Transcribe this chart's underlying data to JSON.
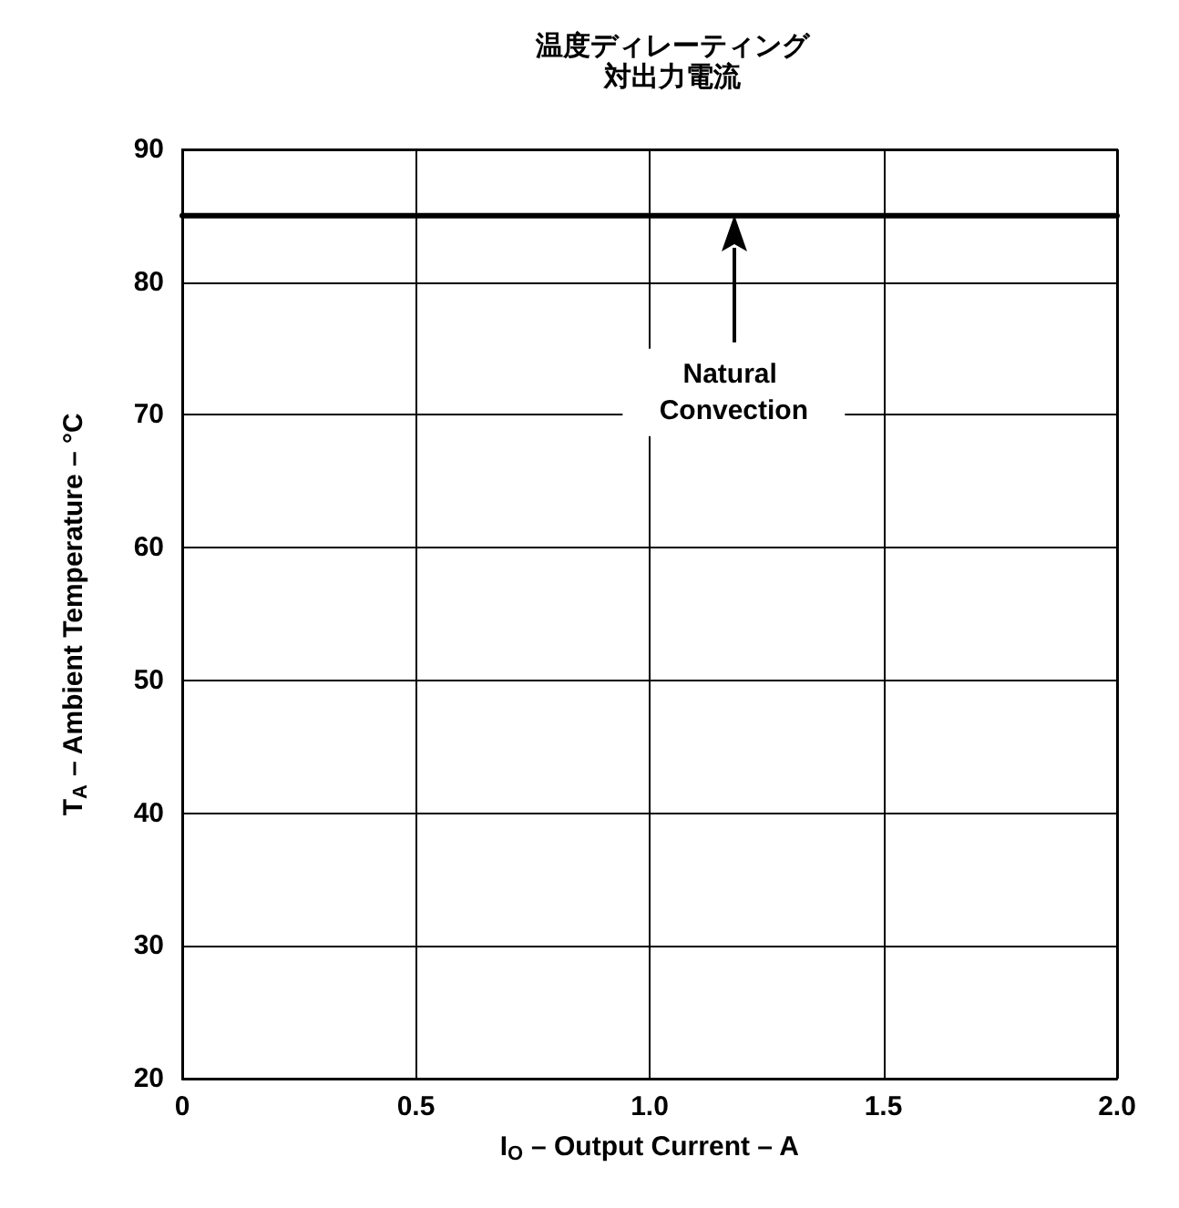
{
  "chart_data": {
    "type": "line",
    "title": "温度ディレーティング対出力電流",
    "xlabel": "I$_{O}$ – Output Current – A",
    "ylabel": "T$_{A}$ – Ambient Temperature – °C",
    "x": [
      0,
      2
    ],
    "series": [
      {
        "color": "#000000",
        "values": [
          85,
          85
        ]
      }
    ],
    "xlim": [
      0,
      2
    ],
    "xticks": [
      0,
      {
        "value": 0.5,
        "label": "0.5"
      },
      {
        "value": 1,
        "label": "1.0"
      },
      {
        "value": 1.5,
        "label": "1.5"
      },
      {
        "value": 2,
        "label": "2.0"
      }
    ],
    "ylim": [
      20,
      90
    ],
    "yticks": [
      20,
      30,
      40,
      50,
      60,
      70,
      80,
      90
    ],
    "grid": true,
    "marker": "none",
    "line_style": "solid",
    "annotations": [
      "Natural Convection"
    ]
  }
}
